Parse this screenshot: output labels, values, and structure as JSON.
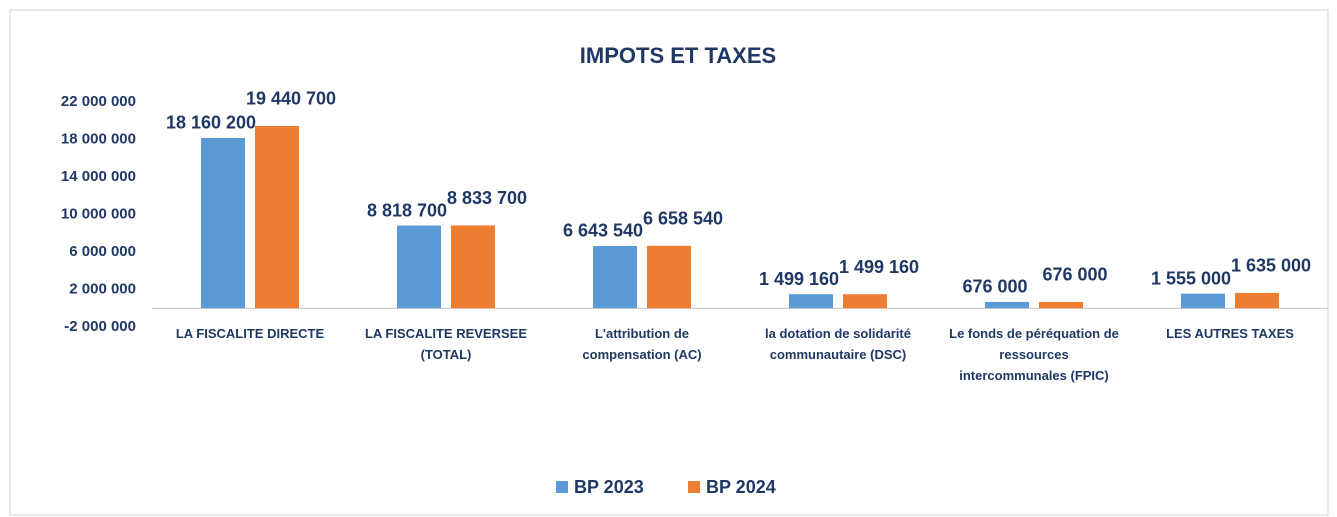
{
  "chart_data": {
    "type": "bar",
    "title": "IMPOTS ET TAXES",
    "categories": [
      "LA FISCALITE DIRECTE",
      "LA FISCALITE REVERSEE (TOTAL)",
      "L'attribution de compensation (AC)",
      "la dotation de solidarité communautaire (DSC)",
      "Le fonds de péréquation de ressources intercommunales (FPIC)",
      "LES AUTRES TAXES"
    ],
    "series": [
      {
        "name": "BP 2023",
        "color": "#5b9bd5",
        "values": [
          18160200,
          8818700,
          6643540,
          1499160,
          676000,
          1555000
        ],
        "value_labels": [
          "18 160 200",
          "8 818 700",
          "6 643 540",
          "1 499 160",
          "676 000",
          "1 555 000"
        ]
      },
      {
        "name": "BP 2024",
        "color": "#ed7d31",
        "values": [
          19440700,
          8833700,
          6658540,
          1499160,
          676000,
          1635000
        ],
        "value_labels": [
          "19 440 700",
          "8 833 700",
          "6 658 540",
          "1 499 160",
          "676 000",
          "1 635 000"
        ]
      }
    ],
    "ylim": [
      -2000000,
      22000000
    ],
    "yticks": [
      {
        "value": -2000000,
        "label": "-2 000 000"
      },
      {
        "value": 2000000,
        "label": "2 000 000"
      },
      {
        "value": 6000000,
        "label": "6 000 000"
      },
      {
        "value": 10000000,
        "label": "10 000 000"
      },
      {
        "value": 14000000,
        "label": "14 000 000"
      },
      {
        "value": 18000000,
        "label": "18 000 000"
      },
      {
        "value": 22000000,
        "label": "22 000 000"
      }
    ],
    "grid": false,
    "legend": "bottom"
  }
}
